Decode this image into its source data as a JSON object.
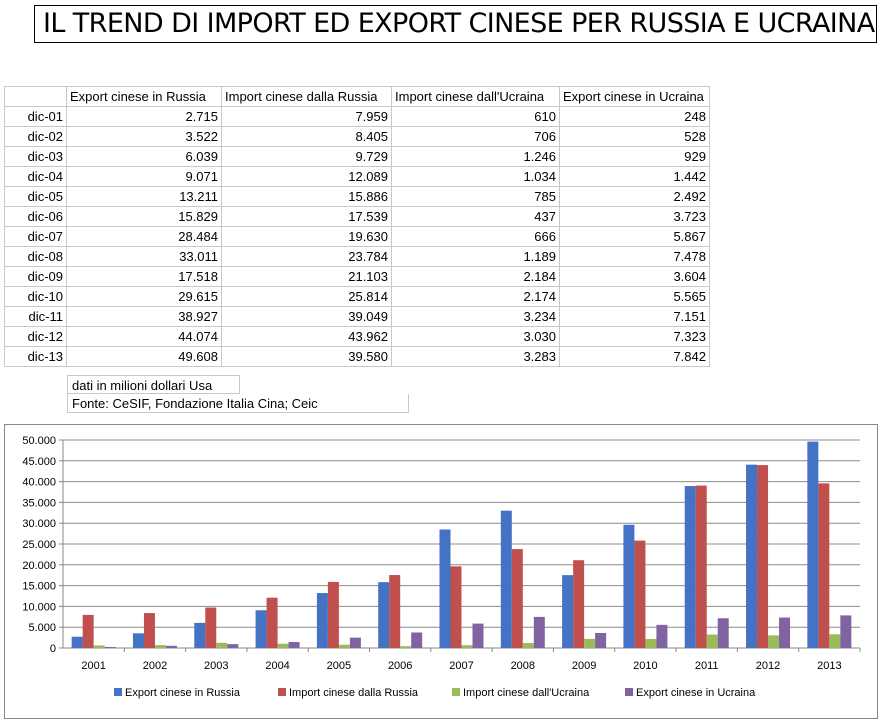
{
  "title": "IL TREND DI IMPORT ED EXPORT CINESE PER RUSSIA E UCRAINA",
  "table": {
    "headers": [
      "",
      "Export cinese in Russia",
      "Import cinese dalla Russia",
      "Import cinese dall'Ucraina",
      "Export cinese in Ucraina"
    ],
    "rows": [
      [
        "dic-01",
        "2.715",
        "7.959",
        "610",
        "248"
      ],
      [
        "dic-02",
        "3.522",
        "8.405",
        "706",
        "528"
      ],
      [
        "dic-03",
        "6.039",
        "9.729",
        "1.246",
        "929"
      ],
      [
        "dic-04",
        "9.071",
        "12.089",
        "1.034",
        "1.442"
      ],
      [
        "dic-05",
        "13.211",
        "15.886",
        "785",
        "2.492"
      ],
      [
        "dic-06",
        "15.829",
        "17.539",
        "437",
        "3.723"
      ],
      [
        "dic-07",
        "28.484",
        "19.630",
        "666",
        "5.867"
      ],
      [
        "dic-08",
        "33.011",
        "23.784",
        "1.189",
        "7.478"
      ],
      [
        "dic-09",
        "17.518",
        "21.103",
        "2.184",
        "3.604"
      ],
      [
        "dic-10",
        "29.615",
        "25.814",
        "2.174",
        "5.565"
      ],
      [
        "dic-11",
        "38.927",
        "39.049",
        "3.234",
        "7.151"
      ],
      [
        "dic-12",
        "44.074",
        "43.962",
        "3.030",
        "7.323"
      ],
      [
        "dic-13",
        "49.608",
        "39.580",
        "3.283",
        "7.842"
      ]
    ]
  },
  "notes": {
    "units": "dati in milioni dollari Usa",
    "source": "Fonte: CeSIF, Fondazione Italia Cina; Ceic"
  },
  "chart_data": {
    "type": "bar",
    "categories": [
      "2001",
      "2002",
      "2003",
      "2004",
      "2005",
      "2006",
      "2007",
      "2008",
      "2009",
      "2010",
      "2011",
      "2012",
      "2013"
    ],
    "series": [
      {
        "name": "Export cinese in Russia",
        "color": "#4472c4",
        "values": [
          2715,
          3522,
          6039,
          9071,
          13211,
          15829,
          28484,
          33011,
          17518,
          29615,
          38927,
          44074,
          49608
        ]
      },
      {
        "name": "Import cinese dalla Russia",
        "color": "#c0504d",
        "values": [
          7959,
          8405,
          9729,
          12089,
          15886,
          17539,
          19630,
          23784,
          21103,
          25814,
          39049,
          43962,
          39580
        ]
      },
      {
        "name": "Import cinese dall'Ucraina",
        "color": "#9bbb59",
        "values": [
          610,
          706,
          1246,
          1034,
          785,
          437,
          666,
          1189,
          2184,
          2174,
          3234,
          3030,
          3283
        ]
      },
      {
        "name": "Export cinese in Ucraina",
        "color": "#8064a2",
        "values": [
          248,
          528,
          929,
          1442,
          2492,
          3723,
          5867,
          7478,
          3604,
          5565,
          7151,
          7323,
          7842
        ]
      }
    ],
    "ylim": [
      0,
      50000
    ],
    "yticks": [
      "0",
      "5.000",
      "10.000",
      "15.000",
      "20.000",
      "25.000",
      "30.000",
      "35.000",
      "40.000",
      "45.000",
      "50.000"
    ],
    "grid": true,
    "legend": "bottom"
  }
}
